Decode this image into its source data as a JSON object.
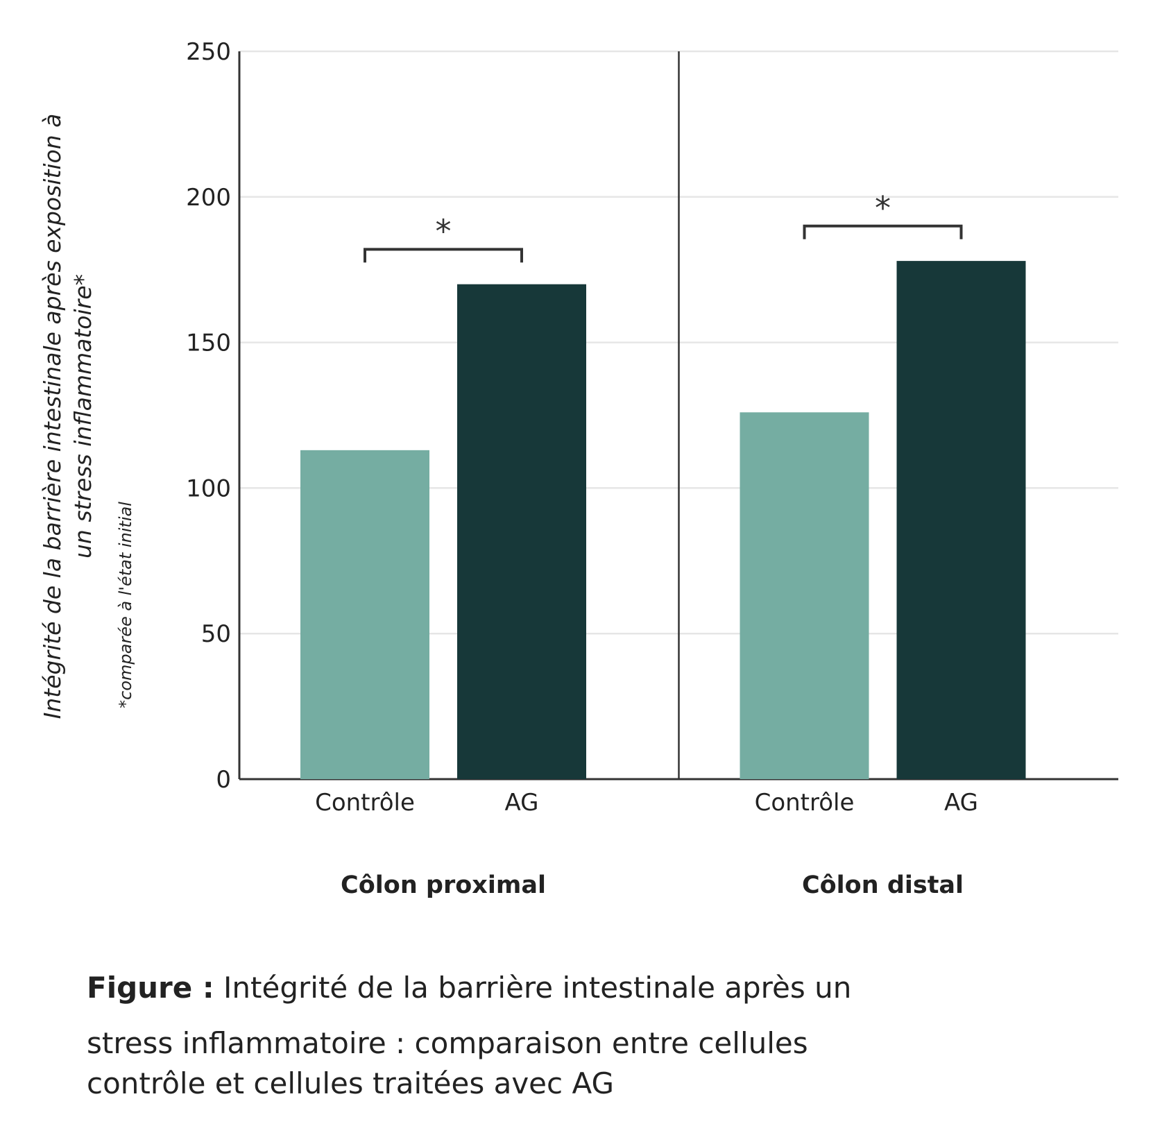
{
  "chart_data": {
    "type": "bar",
    "ylim": [
      0,
      250
    ],
    "yticks": [
      0,
      50,
      100,
      150,
      200,
      250
    ],
    "grid": true,
    "ylabel_line1": "Intégrité de la barrière intestinale après exposition à",
    "ylabel_line2": "un stress inflammatoire*",
    "ylabel_note": "*comparée à l'état initial",
    "colors": {
      "Contrôle": "#75ada2",
      "AG": "#173839"
    },
    "panels": [
      {
        "name": "Côlon proximal",
        "categories": [
          "Contrôle",
          "AG"
        ],
        "values": [
          113,
          170
        ],
        "significance": {
          "label": "*",
          "level": 182
        }
      },
      {
        "name": "Côlon distal",
        "categories": [
          "Contrôle",
          "AG"
        ],
        "values": [
          126,
          178
        ],
        "significance": {
          "label": "*",
          "level": 190
        }
      }
    ]
  },
  "caption": {
    "bold": "Figure :",
    "line1": "Intégrité de la barrière intestinale après un",
    "line2": "stress inflammatoire : comparaison entre cellules",
    "line3": "contrôle et cellules traitées avec AG"
  }
}
